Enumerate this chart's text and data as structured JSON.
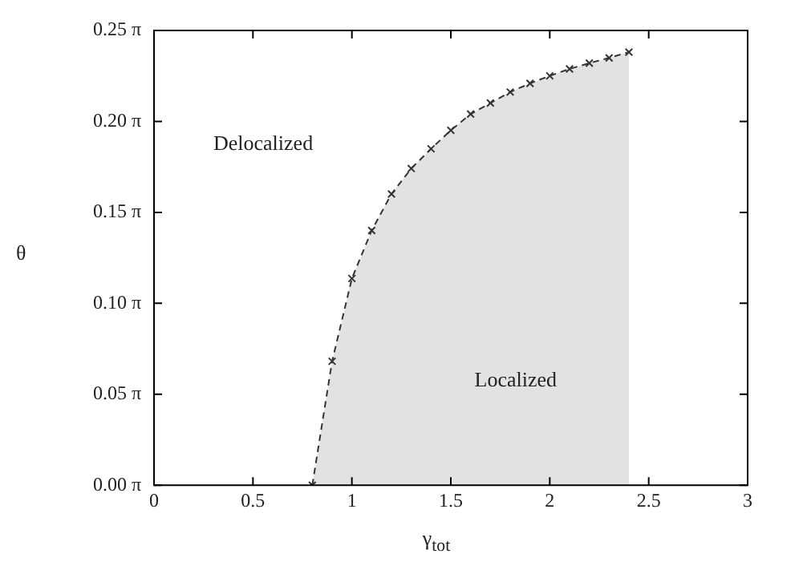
{
  "chart_data": {
    "type": "line",
    "xlabel": "γ$_{tot}$",
    "ylabel": "θ",
    "x": [
      0.8,
      0.9,
      1.0,
      1.1,
      1.2,
      1.3,
      1.4,
      1.5,
      1.6,
      1.7,
      1.8,
      1.9,
      2.0,
      2.1,
      2.2,
      2.3,
      2.4
    ],
    "series": [
      {
        "type": "area",
        "color": "#333333",
        "values": [
          0,
          0.214,
          0.357,
          0.44,
          0.503,
          0.547,
          0.581,
          0.613,
          0.641,
          0.66,
          0.679,
          0.694,
          0.707,
          0.719,
          0.729,
          0.738,
          0.748
        ]
      }
    ],
    "xlim": [
      0,
      3
    ],
    "xticks": [
      0,
      0.5,
      1,
      1.5,
      2,
      2.5,
      3
    ],
    "ylim": [
      0,
      0.785398
    ],
    "yticks": [
      {
        "value": 0,
        "label": "0.00 π"
      },
      {
        "value": 0.15708,
        "label": "0.05 π"
      },
      {
        "value": 0.314159,
        "label": "0.10 π"
      },
      {
        "value": 0.471239,
        "label": "0.15 π"
      },
      {
        "value": 0.628319,
        "label": "0.20 π"
      },
      {
        "value": 0.785398,
        "label": "0.25 π"
      }
    ],
    "annotations": [
      "Delocalized",
      "Localized"
    ],
    "marker": "cross",
    "line_style": "dashed",
    "grid": false,
    "legend": false
  }
}
